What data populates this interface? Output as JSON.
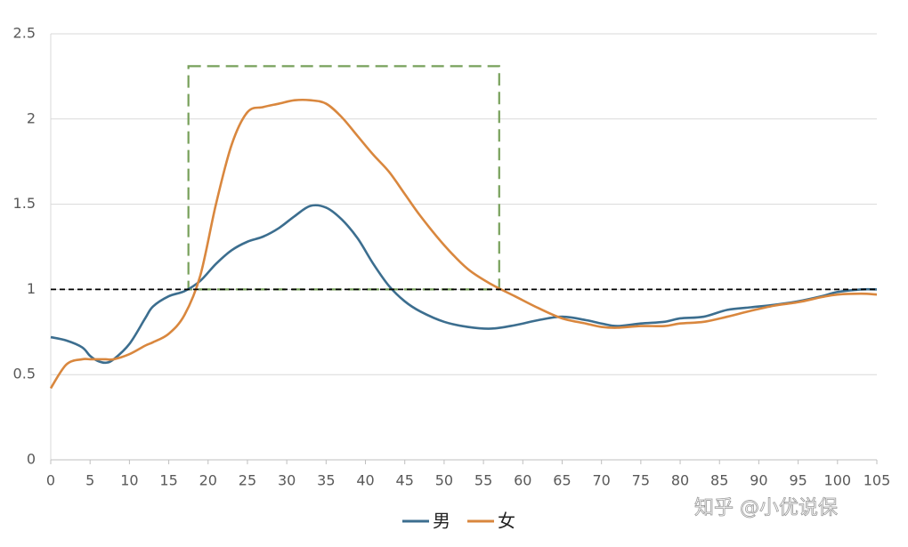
{
  "chart_data": {
    "type": "line",
    "x": [
      0,
      2,
      4,
      5,
      6,
      7,
      8,
      10,
      12,
      13,
      15,
      17,
      19,
      21,
      23,
      25,
      27,
      29,
      31,
      33,
      35,
      37,
      39,
      41,
      43,
      45,
      47,
      50,
      53,
      56,
      59,
      62,
      65,
      68,
      70,
      72,
      75,
      78,
      80,
      83,
      86,
      89,
      92,
      95,
      98,
      100,
      103,
      105
    ],
    "series": [
      {
        "name": "男",
        "color": "#3c6e8f",
        "values": [
          0.72,
          0.7,
          0.66,
          0.61,
          0.58,
          0.57,
          0.59,
          0.68,
          0.83,
          0.9,
          0.96,
          0.99,
          1.05,
          1.15,
          1.23,
          1.28,
          1.31,
          1.36,
          1.43,
          1.49,
          1.48,
          1.41,
          1.3,
          1.15,
          1.02,
          0.93,
          0.87,
          0.81,
          0.78,
          0.77,
          0.79,
          0.82,
          0.84,
          0.82,
          0.8,
          0.785,
          0.8,
          0.81,
          0.83,
          0.84,
          0.88,
          0.895,
          0.91,
          0.93,
          0.96,
          0.985,
          1.0,
          1.0
        ]
      },
      {
        "name": "女",
        "color": "#d9873e",
        "values": [
          0.42,
          0.56,
          0.59,
          0.59,
          0.59,
          0.59,
          0.59,
          0.62,
          0.67,
          0.69,
          0.74,
          0.85,
          1.08,
          1.5,
          1.85,
          2.04,
          2.07,
          2.09,
          2.11,
          2.11,
          2.09,
          2.01,
          1.9,
          1.79,
          1.69,
          1.56,
          1.43,
          1.26,
          1.12,
          1.03,
          0.96,
          0.89,
          0.83,
          0.8,
          0.78,
          0.775,
          0.785,
          0.785,
          0.8,
          0.81,
          0.84,
          0.875,
          0.905,
          0.925,
          0.955,
          0.97,
          0.975,
          0.97
        ]
      }
    ],
    "xlim": [
      0,
      105
    ],
    "xticks": [
      0,
      5,
      10,
      15,
      20,
      25,
      30,
      35,
      40,
      45,
      50,
      55,
      60,
      65,
      70,
      75,
      80,
      85,
      90,
      95,
      100,
      105
    ],
    "ylim": [
      0,
      2.5
    ],
    "yticks": [
      0,
      0.5,
      1,
      1.5,
      2,
      2.5
    ],
    "grid": true,
    "reference_line": 1,
    "highlight_box": {
      "x": [
        17.5,
        57
      ],
      "y": [
        1,
        2.31
      ],
      "color": "#77a05a"
    },
    "legend": "bottom",
    "watermark": "知乎 @小优说保"
  }
}
